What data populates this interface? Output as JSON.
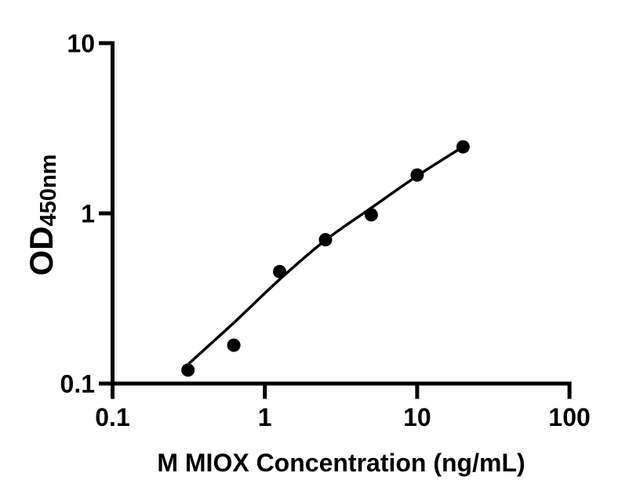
{
  "chart_data": {
    "type": "scatter",
    "description": "Log-log ELISA standard curve of OD450nm versus M MIOX concentration with fitted line",
    "xlabel": "M MIOX Concentration (ng/mL)",
    "ylabel": {
      "main": "OD",
      "sub": "450nm"
    },
    "x_axis": {
      "scale": "log",
      "range": [
        0.1,
        100
      ],
      "ticks": [
        {
          "value": 0.1,
          "label": "0.1"
        },
        {
          "value": 1,
          "label": "1"
        },
        {
          "value": 10,
          "label": "10"
        },
        {
          "value": 100,
          "label": "100"
        }
      ]
    },
    "y_axis": {
      "scale": "log",
      "range": [
        0.1,
        10
      ],
      "ticks": [
        {
          "value": 0.1,
          "label": "0.1"
        },
        {
          "value": 1,
          "label": "1"
        },
        {
          "value": 10,
          "label": "10"
        }
      ]
    },
    "grid": false,
    "legend": false,
    "background": "#ffffff",
    "colors": {
      "marker": "#000000",
      "line": "#000000",
      "axis": "#000000"
    },
    "series": [
      {
        "name": "standard-points",
        "type": "scatter",
        "marker": "filled-circle",
        "points": [
          {
            "x": 0.313,
            "y": 0.12
          },
          {
            "x": 0.625,
            "y": 0.168
          },
          {
            "x": 1.25,
            "y": 0.455
          },
          {
            "x": 2.5,
            "y": 0.7
          },
          {
            "x": 5,
            "y": 0.98
          },
          {
            "x": 10,
            "y": 1.68
          },
          {
            "x": 20,
            "y": 2.46
          }
        ]
      },
      {
        "name": "fit-curve",
        "type": "line",
        "points": [
          {
            "x": 0.32,
            "y": 0.132
          },
          {
            "x": 0.62,
            "y": 0.226
          },
          {
            "x": 1.24,
            "y": 0.406
          },
          {
            "x": 2.47,
            "y": 0.69
          },
          {
            "x": 5.03,
            "y": 1.08
          },
          {
            "x": 9.9,
            "y": 1.65
          },
          {
            "x": 19.7,
            "y": 2.44
          }
        ]
      }
    ]
  }
}
